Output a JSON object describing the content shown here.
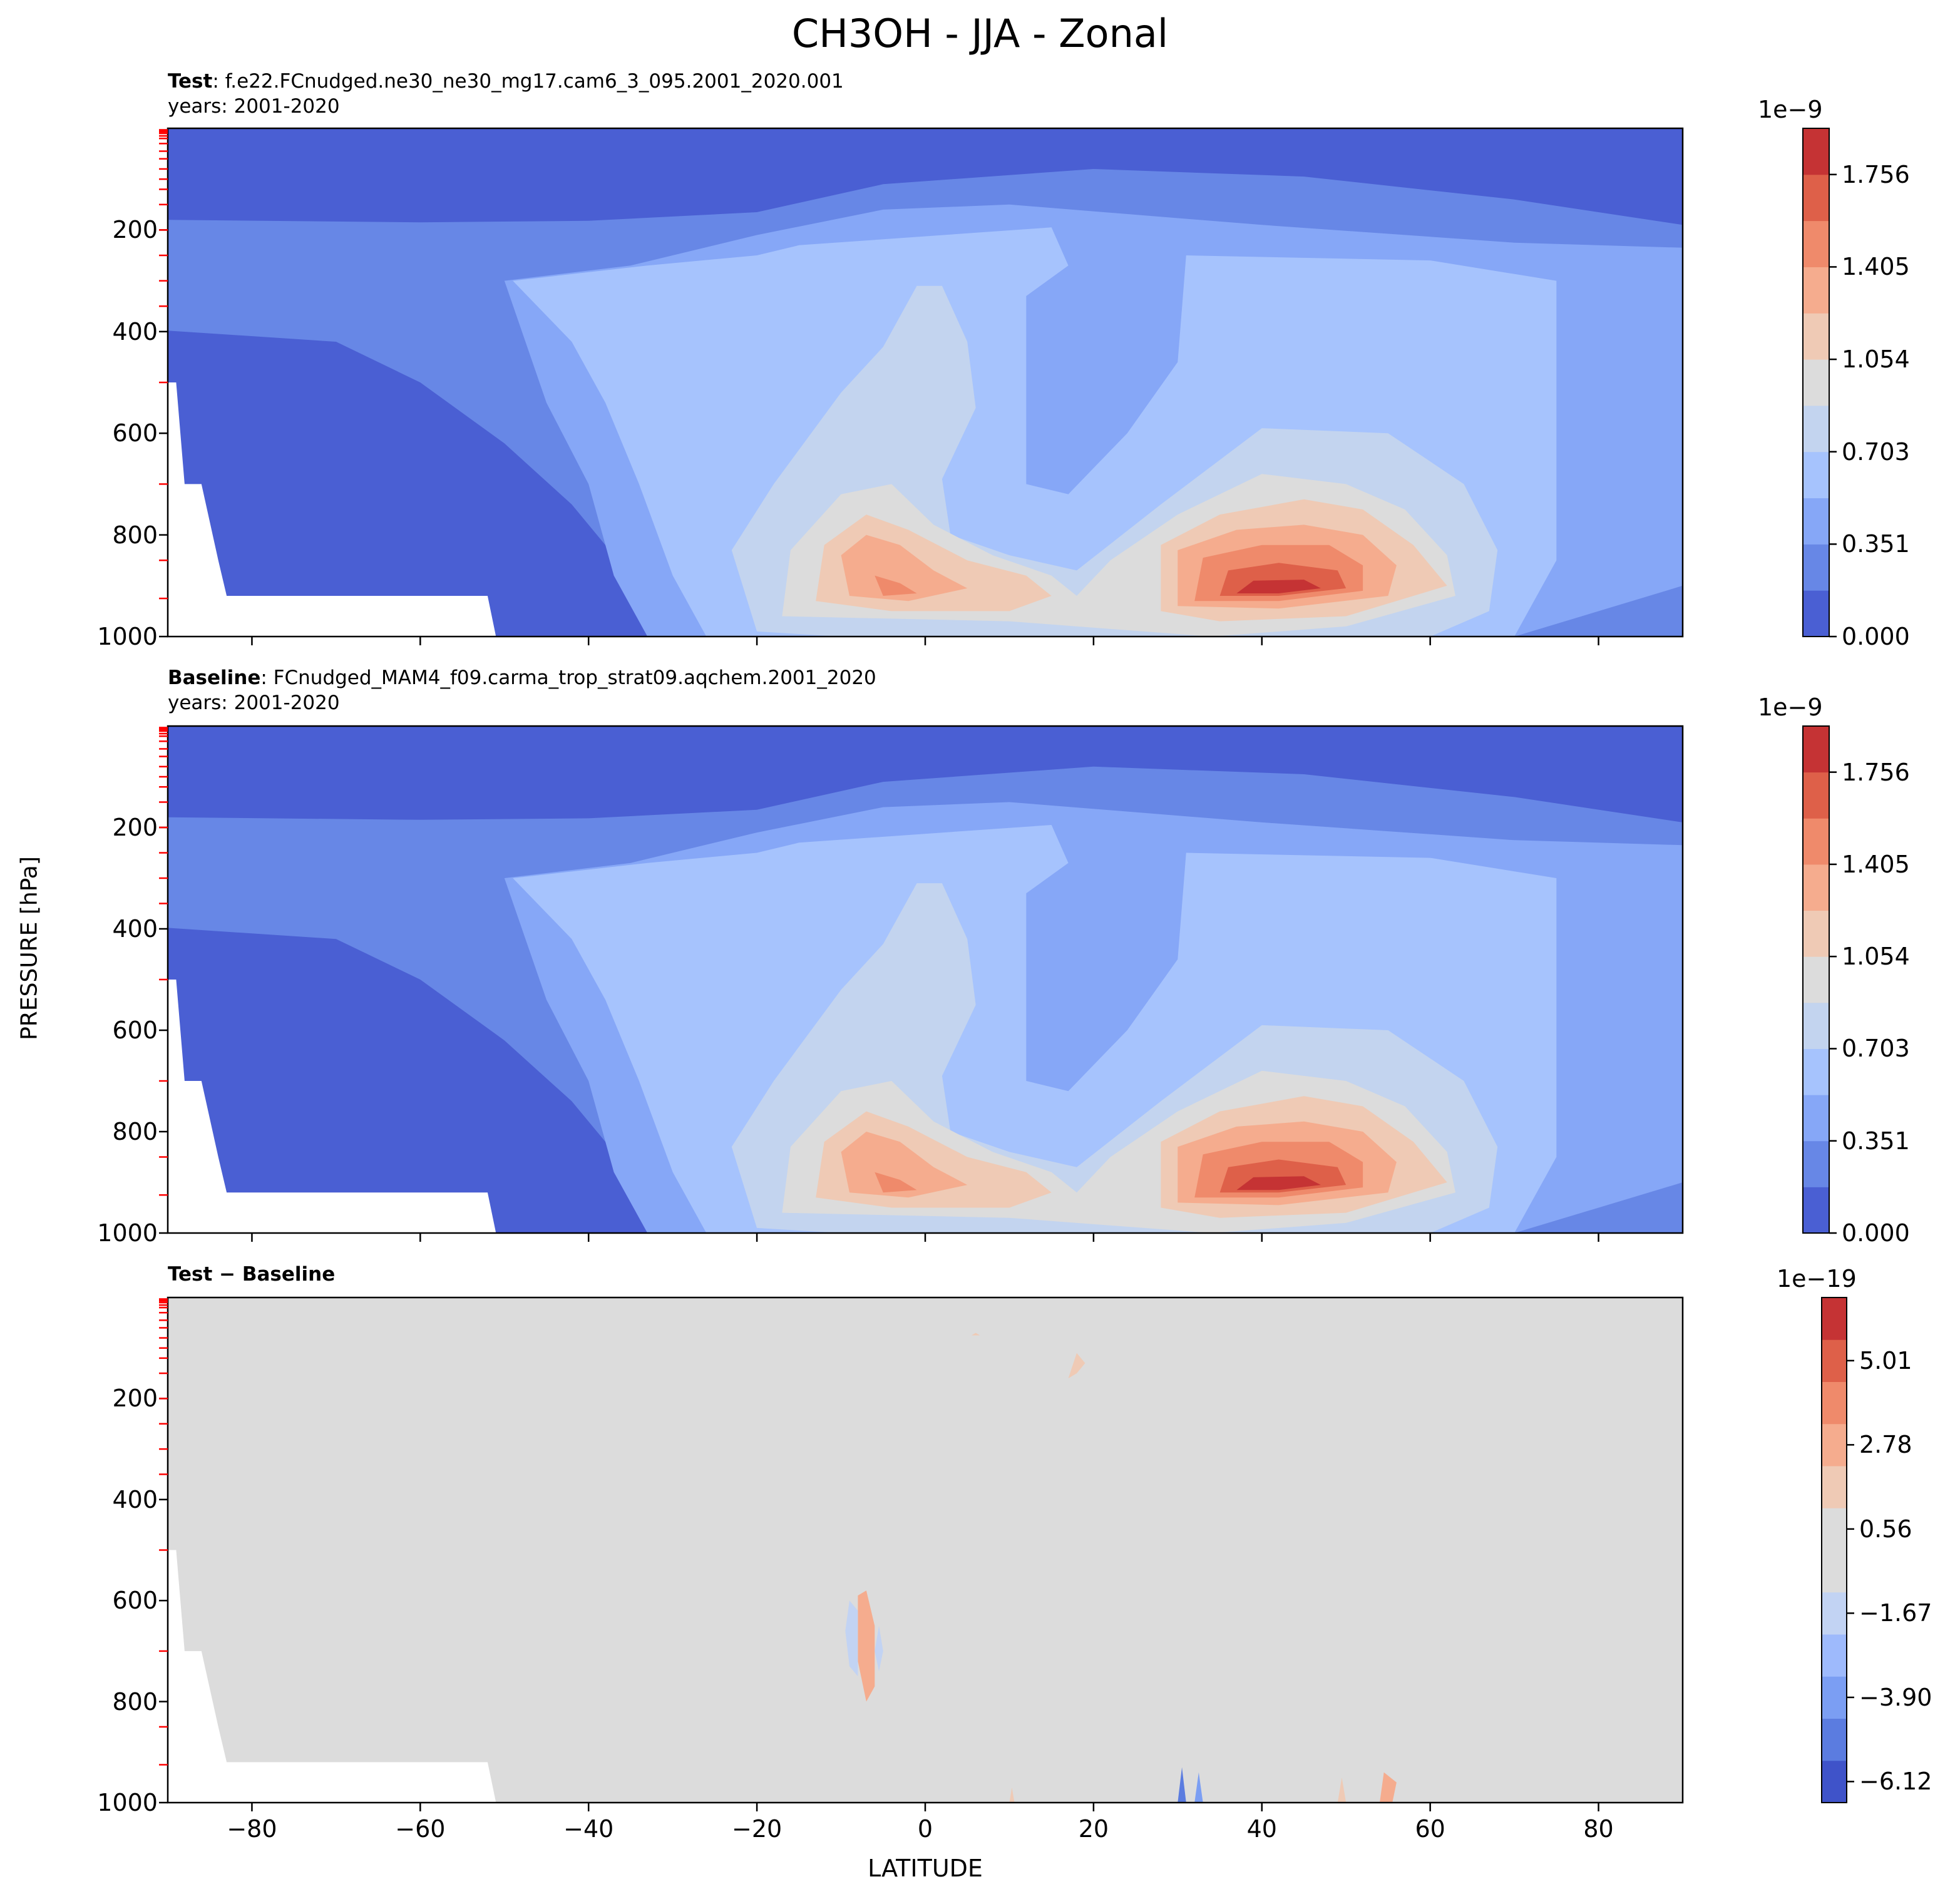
{
  "figure": {
    "title": "CH3OH - JJA - Zonal",
    "ylabel": "PRESSURE [hPa]",
    "xlabel": "LATITUDE"
  },
  "chart_data": [
    {
      "type": "contour",
      "panel": "test",
      "title_bold": "Test",
      "title_text": ": f.e22.FCnudged.ne30_ne30_mg17.cam6_3_095.2001_2020.001",
      "subtitle": "years: 2001-2020",
      "xlim": [
        -90,
        90
      ],
      "ylim": [
        1000,
        0
      ],
      "yticks": [
        "200",
        "400",
        "600",
        "800",
        "1000"
      ],
      "colorbar": {
        "exponent": "1e−9",
        "ticks": [
          "0.000",
          "0.351",
          "0.703",
          "1.054",
          "1.405",
          "1.756"
        ],
        "levels": 11,
        "colors": [
          "#4a5fd3",
          "#6787e6",
          "#86a7f7",
          "#a6c3fd",
          "#c3d4ef",
          "#dcdcdc",
          "#efcab5",
          "#f5ac8e",
          "#ef8a6b",
          "#de6049",
          "#c53334"
        ]
      }
    },
    {
      "type": "contour",
      "panel": "baseline",
      "title_bold": "Baseline",
      "title_text": ": FCnudged_MAM4_f09.carma_trop_strat09.aqchem.2001_2020",
      "subtitle": "years: 2001-2020",
      "xlim": [
        -90,
        90
      ],
      "ylim": [
        1000,
        0
      ],
      "yticks": [
        "200",
        "400",
        "600",
        "800",
        "1000"
      ],
      "colorbar": {
        "exponent": "1e−9",
        "ticks": [
          "0.000",
          "0.351",
          "0.703",
          "1.054",
          "1.405",
          "1.756"
        ],
        "levels": 11,
        "colors": [
          "#4a5fd3",
          "#6787e6",
          "#86a7f7",
          "#a6c3fd",
          "#c3d4ef",
          "#dcdcdc",
          "#efcab5",
          "#f5ac8e",
          "#ef8a6b",
          "#de6049",
          "#c53334"
        ]
      }
    },
    {
      "type": "contour",
      "panel": "difference",
      "title_bold": "Test − Baseline",
      "xlim": [
        -90,
        90
      ],
      "ylim": [
        1000,
        0
      ],
      "yticks": [
        "200",
        "400",
        "600",
        "800",
        "1000"
      ],
      "xticks": [
        "−80",
        "−60",
        "−40",
        "−20",
        "0",
        "20",
        "40",
        "60",
        "80"
      ],
      "colorbar": {
        "exponent": "1e−19",
        "ticks": [
          "−6.12",
          "−3.90",
          "−1.67",
          "0.56",
          "2.78",
          "5.01"
        ],
        "levels": 12,
        "colors": [
          "#3f53c9",
          "#5b7ce0",
          "#7b9ef3",
          "#9ebafc",
          "#c2d3f3",
          "#dcdcdc",
          "#dcdcdc",
          "#efcab5",
          "#f5ac8e",
          "#ef8a6b",
          "#de6049",
          "#c53334"
        ]
      }
    }
  ]
}
